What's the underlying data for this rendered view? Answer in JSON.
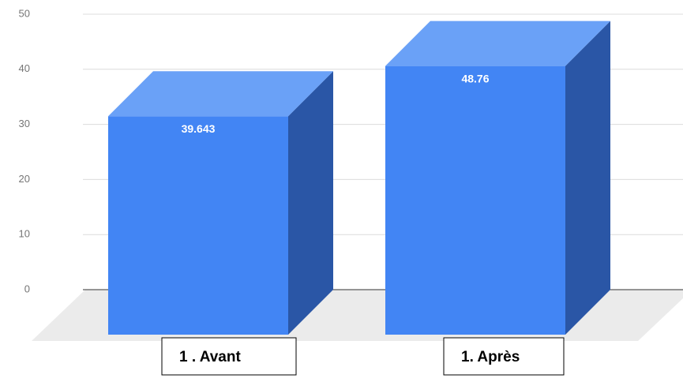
{
  "chart_data": {
    "type": "bar3d",
    "categories": [
      "1 . Avant",
      "1. Après"
    ],
    "values": [
      39.643,
      48.76
    ],
    "color": "#4285f4",
    "ylim": [
      0,
      50
    ],
    "yticks": [
      0,
      10,
      20,
      30,
      40,
      50
    ],
    "grid": true
  }
}
